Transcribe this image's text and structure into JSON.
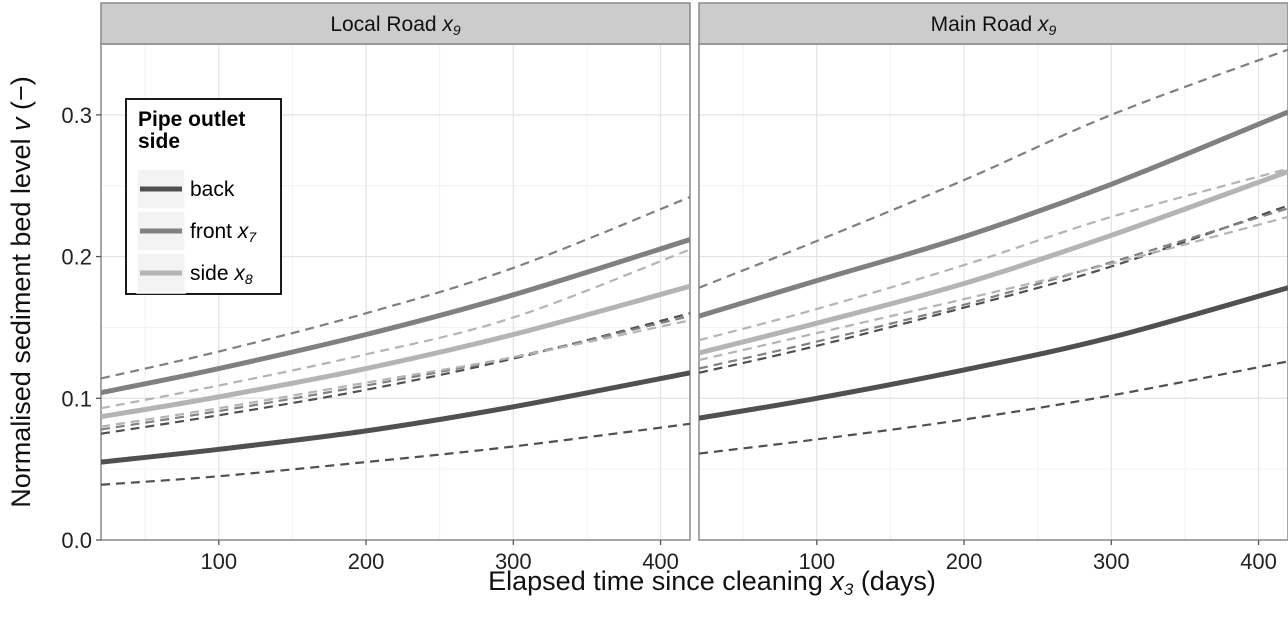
{
  "chart_data": {
    "type": "line",
    "facets": [
      {
        "label": "Local Road",
        "label_subscript": "x",
        "label_subscript_index": "9",
        "label_text": "Local Road x9"
      },
      {
        "label": "Main Road",
        "label_subscript": "x",
        "label_subscript_index": "9",
        "label_text": "Main Road x9"
      }
    ],
    "xlabel": "Elapsed time since cleaning",
    "xlabel_var": "x",
    "xlabel_var_index": "3",
    "xlabel_unit": "(days)",
    "ylabel": "Normalised sediment bed level",
    "ylabel_var": "v",
    "ylabel_unit": "(−)",
    "xlim": [
      20,
      420
    ],
    "ylim": [
      0,
      0.35
    ],
    "x_ticks": [
      100,
      200,
      300,
      400
    ],
    "x_tick_labels": [
      "100",
      "200",
      "300",
      "400"
    ],
    "y_ticks": [
      0.0,
      0.1,
      0.2,
      0.3
    ],
    "y_tick_labels": [
      "0.0",
      "0.1",
      "0.2",
      "0.3"
    ],
    "grid": true,
    "legend": {
      "title": "Pipe outlet side",
      "title_lines": [
        "Pipe outlet",
        "side"
      ],
      "placement": "top-left inside first panel",
      "entries": [
        {
          "series": "back",
          "label": "back",
          "var": "",
          "var_index": ""
        },
        {
          "series": "front",
          "label": "front",
          "var": "x",
          "var_index": "7"
        },
        {
          "series": "side",
          "label": "side",
          "var": "x",
          "var_index": "8"
        }
      ]
    },
    "colors": {
      "back": "#505050",
      "front": "#808080",
      "side": "#b4b4b4"
    },
    "x": [
      20,
      100,
      200,
      300,
      420
    ],
    "series": [
      {
        "name": "back",
        "panel": "Local Road",
        "role": "fit",
        "values": [
          0.055,
          0.064,
          0.077,
          0.094,
          0.118
        ]
      },
      {
        "name": "back",
        "panel": "Local Road",
        "role": "lower",
        "values": [
          0.039,
          0.045,
          0.055,
          0.066,
          0.082
        ]
      },
      {
        "name": "back",
        "panel": "Local Road",
        "role": "upper",
        "values": [
          0.075,
          0.088,
          0.106,
          0.128,
          0.16
        ]
      },
      {
        "name": "front",
        "panel": "Local Road",
        "role": "fit",
        "values": [
          0.104,
          0.121,
          0.145,
          0.173,
          0.212
        ]
      },
      {
        "name": "front",
        "panel": "Local Road",
        "role": "lower",
        "values": [
          0.078,
          0.091,
          0.109,
          0.129,
          0.158
        ]
      },
      {
        "name": "front",
        "panel": "Local Road",
        "role": "upper",
        "values": [
          0.114,
          0.133,
          0.16,
          0.192,
          0.242
        ]
      },
      {
        "name": "side",
        "panel": "Local Road",
        "role": "fit",
        "values": [
          0.087,
          0.101,
          0.121,
          0.145,
          0.179
        ]
      },
      {
        "name": "side",
        "panel": "Local Road",
        "role": "lower",
        "values": [
          0.08,
          0.093,
          0.111,
          0.129,
          0.155
        ]
      },
      {
        "name": "side",
        "panel": "Local Road",
        "role": "upper",
        "values": [
          0.093,
          0.109,
          0.131,
          0.157,
          0.205
        ]
      },
      {
        "name": "back",
        "panel": "Main Road",
        "role": "fit",
        "values": [
          0.086,
          0.1,
          0.12,
          0.143,
          0.178
        ]
      },
      {
        "name": "back",
        "panel": "Main Road",
        "role": "lower",
        "values": [
          0.061,
          0.071,
          0.085,
          0.102,
          0.126
        ]
      },
      {
        "name": "back",
        "panel": "Main Road",
        "role": "upper",
        "values": [
          0.118,
          0.137,
          0.164,
          0.193,
          0.236
        ]
      },
      {
        "name": "front",
        "panel": "Main Road",
        "role": "fit",
        "values": [
          0.158,
          0.183,
          0.214,
          0.251,
          0.302
        ]
      },
      {
        "name": "front",
        "panel": "Main Road",
        "role": "lower",
        "values": [
          0.121,
          0.14,
          0.166,
          0.196,
          0.234
        ]
      },
      {
        "name": "front",
        "panel": "Main Road",
        "role": "upper",
        "values": [
          0.178,
          0.211,
          0.254,
          0.3,
          0.346
        ]
      },
      {
        "name": "side",
        "panel": "Main Road",
        "role": "fit",
        "values": [
          0.132,
          0.153,
          0.181,
          0.215,
          0.26
        ]
      },
      {
        "name": "side",
        "panel": "Main Road",
        "role": "lower",
        "values": [
          0.127,
          0.146,
          0.17,
          0.195,
          0.228
        ]
      },
      {
        "name": "side",
        "panel": "Main Road",
        "role": "upper",
        "values": [
          0.141,
          0.163,
          0.194,
          0.228,
          0.262
        ]
      }
    ]
  }
}
